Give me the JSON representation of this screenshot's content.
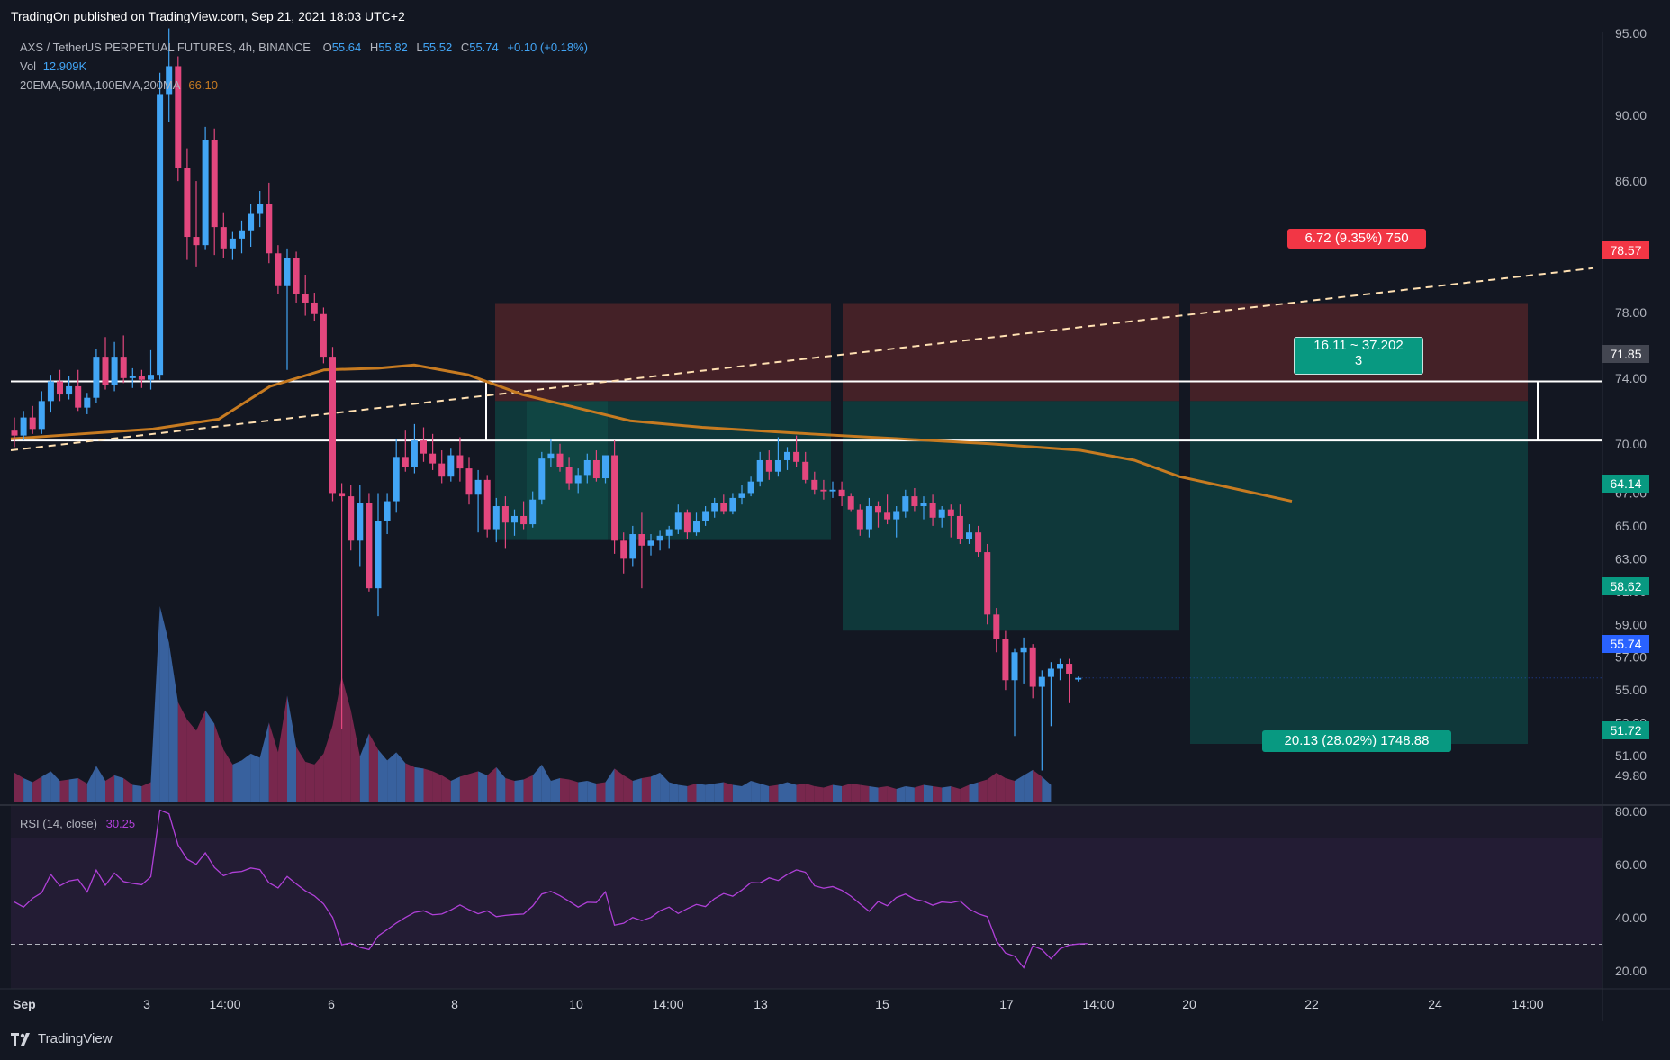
{
  "header": {
    "published": "TradingOn published on TradingView.com, Sep 21, 2021 18:03 UTC+2"
  },
  "legend": {
    "symbol": "AXS / TetherUS PERPETUAL FUTURES, 4h, BINANCE",
    "open_label": "O",
    "open": "55.64",
    "high_label": "H",
    "high": "55.82",
    "low_label": "L",
    "low": "55.52",
    "close_label": "C",
    "close": "55.74",
    "change": "+0.10 (+0.18%)",
    "vol_label": "Vol",
    "vol": "12.909K",
    "ma_label": "20EMA,50MA,100EMA,200MA",
    "ma_value": "66.10"
  },
  "rsi_legend": {
    "label": "RSI (14, close)",
    "value": "30.25"
  },
  "footer": {
    "brand": "TradingView"
  },
  "colors": {
    "bg": "#131722",
    "up": "#42a5f5",
    "down": "#e3477e",
    "ma": "#c77b21",
    "rsi": "#b040d8",
    "target_zone": "#0f3c3d",
    "stop_zone": "#4a2228",
    "tag_green": "#089981",
    "tag_red": "#f23645",
    "tag_blue": "#2962ff"
  },
  "price_axis": {
    "ticks": [
      "95.00",
      "90.00",
      "86.00",
      "82.00",
      "78.00",
      "74.00",
      "70.00",
      "67.00",
      "65.00",
      "63.00",
      "61.00",
      "59.00",
      "57.00",
      "55.00",
      "53.00",
      "51.00",
      "49.80"
    ]
  },
  "price_tags": [
    {
      "value": "78.57",
      "color": "#f23645"
    },
    {
      "value": "71.85",
      "color": "#434651"
    },
    {
      "value": "64.14",
      "color": "#089981"
    },
    {
      "value": "58.62",
      "color": "#089981"
    },
    {
      "value": "55.74",
      "color": "#2962ff"
    },
    {
      "value": "51.72",
      "color": "#089981"
    }
  ],
  "rsi_axis": {
    "ticks": [
      "80.00",
      "60.00",
      "40.00",
      "20.00"
    ]
  },
  "time_axis": {
    "ticks": [
      "Sep",
      "3",
      "14:00",
      "6",
      "8",
      "10",
      "14:00",
      "13",
      "15",
      "17",
      "14:00",
      "20",
      "22",
      "24",
      "14:00"
    ]
  },
  "position": {
    "stop_label": "6.72 (9.35%) 750",
    "range_label_1": "16.11 ~ 37.202",
    "range_label_2": "3",
    "target_label": "20.13 (28.02%) 1748.88"
  },
  "chart_data": {
    "type": "candlestick",
    "title": "AXS / TetherUS PERPETUAL FUTURES, 4h, BINANCE",
    "interval": "4h",
    "ylim": [
      48.5,
      96
    ],
    "x_range_days": [
      1,
      26
    ],
    "candles": [
      {
        "o": 70.8,
        "h": 71.6,
        "l": 69.8,
        "c": 70.5
      },
      {
        "o": 70.5,
        "h": 72.0,
        "l": 70.2,
        "c": 71.6
      },
      {
        "o": 71.6,
        "h": 72.3,
        "l": 70.6,
        "c": 70.9
      },
      {
        "o": 70.9,
        "h": 73.2,
        "l": 70.6,
        "c": 72.6
      },
      {
        "o": 72.6,
        "h": 74.2,
        "l": 71.9,
        "c": 73.8
      },
      {
        "o": 73.8,
        "h": 74.5,
        "l": 72.6,
        "c": 73.0
      },
      {
        "o": 73.0,
        "h": 74.1,
        "l": 72.7,
        "c": 73.5
      },
      {
        "o": 73.5,
        "h": 74.5,
        "l": 72.0,
        "c": 72.2
      },
      {
        "o": 72.2,
        "h": 73.1,
        "l": 71.8,
        "c": 72.8
      },
      {
        "o": 72.8,
        "h": 75.8,
        "l": 72.5,
        "c": 75.3
      },
      {
        "o": 75.3,
        "h": 76.5,
        "l": 73.3,
        "c": 73.6
      },
      {
        "o": 73.6,
        "h": 76.2,
        "l": 73.2,
        "c": 75.3
      },
      {
        "o": 75.3,
        "h": 76.6,
        "l": 73.7,
        "c": 74.0
      },
      {
        "o": 74.0,
        "h": 74.6,
        "l": 73.4,
        "c": 74.1
      },
      {
        "o": 74.1,
        "h": 74.5,
        "l": 73.4,
        "c": 73.9
      },
      {
        "o": 73.9,
        "h": 75.7,
        "l": 73.3,
        "c": 74.2
      },
      {
        "o": 74.2,
        "h": 92.6,
        "l": 73.9,
        "c": 91.3
      },
      {
        "o": 91.3,
        "h": 95.3,
        "l": 89.6,
        "c": 93.0
      },
      {
        "o": 93.0,
        "h": 93.6,
        "l": 86.0,
        "c": 86.8
      },
      {
        "o": 86.8,
        "h": 88.0,
        "l": 81.2,
        "c": 82.6
      },
      {
        "o": 82.6,
        "h": 86.0,
        "l": 80.8,
        "c": 82.1
      },
      {
        "o": 82.1,
        "h": 89.3,
        "l": 81.8,
        "c": 88.5
      },
      {
        "o": 88.5,
        "h": 89.2,
        "l": 81.5,
        "c": 83.2
      },
      {
        "o": 83.2,
        "h": 84.1,
        "l": 81.3,
        "c": 81.9
      },
      {
        "o": 81.9,
        "h": 82.9,
        "l": 81.2,
        "c": 82.5
      },
      {
        "o": 82.5,
        "h": 83.6,
        "l": 81.6,
        "c": 83.0
      },
      {
        "o": 83.0,
        "h": 84.6,
        "l": 82.0,
        "c": 84.0
      },
      {
        "o": 84.0,
        "h": 85.4,
        "l": 83.2,
        "c": 84.6
      },
      {
        "o": 84.6,
        "h": 85.9,
        "l": 81.0,
        "c": 81.6
      },
      {
        "o": 81.6,
        "h": 82.1,
        "l": 79.1,
        "c": 79.6
      },
      {
        "o": 79.6,
        "h": 81.9,
        "l": 74.5,
        "c": 81.3
      },
      {
        "o": 81.3,
        "h": 81.7,
        "l": 78.6,
        "c": 79.1
      },
      {
        "o": 79.1,
        "h": 80.3,
        "l": 77.8,
        "c": 78.6
      },
      {
        "o": 78.6,
        "h": 79.2,
        "l": 77.5,
        "c": 77.9
      },
      {
        "o": 77.9,
        "h": 78.3,
        "l": 74.9,
        "c": 75.3
      },
      {
        "o": 75.3,
        "h": 75.9,
        "l": 66.5,
        "c": 67.0
      },
      {
        "o": 67.0,
        "h": 67.6,
        "l": 52.6,
        "c": 66.8
      },
      {
        "o": 66.8,
        "h": 67.5,
        "l": 63.5,
        "c": 64.1
      },
      {
        "o": 64.1,
        "h": 67.5,
        "l": 62.5,
        "c": 66.4
      },
      {
        "o": 66.4,
        "h": 67.0,
        "l": 61.0,
        "c": 61.2
      },
      {
        "o": 61.2,
        "h": 67.0,
        "l": 59.5,
        "c": 65.3
      },
      {
        "o": 65.3,
        "h": 67.0,
        "l": 64.5,
        "c": 66.5
      },
      {
        "o": 66.5,
        "h": 70.3,
        "l": 65.8,
        "c": 69.2
      },
      {
        "o": 69.2,
        "h": 70.8,
        "l": 68.3,
        "c": 68.6
      },
      {
        "o": 68.6,
        "h": 71.2,
        "l": 68.2,
        "c": 70.2
      },
      {
        "o": 70.2,
        "h": 71.0,
        "l": 68.9,
        "c": 69.4
      },
      {
        "o": 69.4,
        "h": 70.6,
        "l": 68.4,
        "c": 68.8
      },
      {
        "o": 68.8,
        "h": 69.6,
        "l": 67.6,
        "c": 68.0
      },
      {
        "o": 68.0,
        "h": 69.7,
        "l": 67.7,
        "c": 69.3
      },
      {
        "o": 69.3,
        "h": 70.4,
        "l": 67.7,
        "c": 68.5
      },
      {
        "o": 68.5,
        "h": 69.2,
        "l": 66.3,
        "c": 66.9
      },
      {
        "o": 66.9,
        "h": 68.4,
        "l": 64.6,
        "c": 67.8
      },
      {
        "o": 67.8,
        "h": 68.1,
        "l": 64.3,
        "c": 64.8
      },
      {
        "o": 64.8,
        "h": 66.7,
        "l": 64.0,
        "c": 66.2
      },
      {
        "o": 66.2,
        "h": 66.8,
        "l": 63.6,
        "c": 65.2
      },
      {
        "o": 65.2,
        "h": 66.0,
        "l": 64.4,
        "c": 65.6
      },
      {
        "o": 65.6,
        "h": 66.5,
        "l": 64.8,
        "c": 65.1
      },
      {
        "o": 65.1,
        "h": 67.1,
        "l": 64.9,
        "c": 66.6
      },
      {
        "o": 66.6,
        "h": 69.5,
        "l": 66.3,
        "c": 69.1
      },
      {
        "o": 69.1,
        "h": 70.3,
        "l": 68.6,
        "c": 69.4
      },
      {
        "o": 69.4,
        "h": 70.0,
        "l": 68.3,
        "c": 68.6
      },
      {
        "o": 68.6,
        "h": 69.2,
        "l": 67.2,
        "c": 67.6
      },
      {
        "o": 67.6,
        "h": 68.5,
        "l": 67.0,
        "c": 68.1
      },
      {
        "o": 68.1,
        "h": 69.4,
        "l": 67.6,
        "c": 69.0
      },
      {
        "o": 69.0,
        "h": 69.6,
        "l": 67.7,
        "c": 67.9
      },
      {
        "o": 67.9,
        "h": 69.3,
        "l": 67.6,
        "c": 69.3
      },
      {
        "o": 69.3,
        "h": 70.2,
        "l": 63.3,
        "c": 64.1
      },
      {
        "o": 64.1,
        "h": 64.6,
        "l": 62.1,
        "c": 63.0
      },
      {
        "o": 63.0,
        "h": 65.0,
        "l": 62.5,
        "c": 64.5
      },
      {
        "o": 64.5,
        "h": 65.8,
        "l": 61.2,
        "c": 63.8
      },
      {
        "o": 63.8,
        "h": 64.5,
        "l": 63.2,
        "c": 64.1
      },
      {
        "o": 64.1,
        "h": 64.7,
        "l": 63.5,
        "c": 64.4
      },
      {
        "o": 64.4,
        "h": 65.0,
        "l": 63.6,
        "c": 64.8
      },
      {
        "o": 64.8,
        "h": 66.3,
        "l": 64.5,
        "c": 65.8
      },
      {
        "o": 65.8,
        "h": 66.0,
        "l": 64.2,
        "c": 64.6
      },
      {
        "o": 64.6,
        "h": 65.8,
        "l": 64.4,
        "c": 65.3
      },
      {
        "o": 65.3,
        "h": 66.2,
        "l": 65.0,
        "c": 65.9
      },
      {
        "o": 65.9,
        "h": 66.7,
        "l": 65.5,
        "c": 66.4
      },
      {
        "o": 66.4,
        "h": 66.9,
        "l": 65.7,
        "c": 65.9
      },
      {
        "o": 65.9,
        "h": 67.0,
        "l": 65.7,
        "c": 66.7
      },
      {
        "o": 66.7,
        "h": 67.5,
        "l": 66.3,
        "c": 67.0
      },
      {
        "o": 67.0,
        "h": 68.0,
        "l": 66.8,
        "c": 67.7
      },
      {
        "o": 67.7,
        "h": 69.5,
        "l": 67.4,
        "c": 69.0
      },
      {
        "o": 69.0,
        "h": 69.6,
        "l": 67.8,
        "c": 68.3
      },
      {
        "o": 68.3,
        "h": 70.4,
        "l": 68.0,
        "c": 69.0
      },
      {
        "o": 69.0,
        "h": 69.8,
        "l": 68.4,
        "c": 69.5
      },
      {
        "o": 69.5,
        "h": 70.5,
        "l": 68.6,
        "c": 68.9
      },
      {
        "o": 68.9,
        "h": 69.5,
        "l": 67.6,
        "c": 67.8
      },
      {
        "o": 67.8,
        "h": 68.3,
        "l": 66.9,
        "c": 67.2
      },
      {
        "o": 67.2,
        "h": 67.8,
        "l": 66.6,
        "c": 67.1
      },
      {
        "o": 67.1,
        "h": 67.7,
        "l": 66.7,
        "c": 67.2
      },
      {
        "o": 67.2,
        "h": 67.7,
        "l": 66.2,
        "c": 66.8
      },
      {
        "o": 66.8,
        "h": 67.0,
        "l": 65.9,
        "c": 66.0
      },
      {
        "o": 66.0,
        "h": 66.3,
        "l": 64.4,
        "c": 64.8
      },
      {
        "o": 64.8,
        "h": 66.7,
        "l": 64.3,
        "c": 66.2
      },
      {
        "o": 66.2,
        "h": 66.5,
        "l": 64.9,
        "c": 65.8
      },
      {
        "o": 65.8,
        "h": 66.9,
        "l": 65.1,
        "c": 65.4
      },
      {
        "o": 65.4,
        "h": 66.2,
        "l": 64.3,
        "c": 65.9
      },
      {
        "o": 65.9,
        "h": 67.2,
        "l": 65.5,
        "c": 66.8
      },
      {
        "o": 66.8,
        "h": 67.3,
        "l": 65.9,
        "c": 66.2
      },
      {
        "o": 66.2,
        "h": 66.8,
        "l": 65.4,
        "c": 66.4
      },
      {
        "o": 66.4,
        "h": 66.9,
        "l": 65.0,
        "c": 65.5
      },
      {
        "o": 65.5,
        "h": 66.2,
        "l": 64.9,
        "c": 66.0
      },
      {
        "o": 66.0,
        "h": 66.3,
        "l": 64.3,
        "c": 65.6
      },
      {
        "o": 65.6,
        "h": 66.3,
        "l": 63.9,
        "c": 64.2
      },
      {
        "o": 64.2,
        "h": 65.1,
        "l": 63.9,
        "c": 64.6
      },
      {
        "o": 64.6,
        "h": 65.0,
        "l": 63.1,
        "c": 63.4
      },
      {
        "o": 63.4,
        "h": 63.9,
        "l": 59.0,
        "c": 59.6
      },
      {
        "o": 59.6,
        "h": 60.0,
        "l": 57.3,
        "c": 58.1
      },
      {
        "o": 58.1,
        "h": 58.6,
        "l": 55.0,
        "c": 55.6
      },
      {
        "o": 55.6,
        "h": 57.5,
        "l": 52.2,
        "c": 57.3
      },
      {
        "o": 57.3,
        "h": 58.2,
        "l": 55.4,
        "c": 57.6
      },
      {
        "o": 57.6,
        "h": 57.8,
        "l": 54.5,
        "c": 55.2
      },
      {
        "o": 55.2,
        "h": 56.2,
        "l": 50.1,
        "c": 55.8
      },
      {
        "o": 55.8,
        "h": 56.7,
        "l": 52.8,
        "c": 56.3
      },
      {
        "o": 56.3,
        "h": 56.9,
        "l": 55.6,
        "c": 56.6
      },
      {
        "o": 56.6,
        "h": 56.9,
        "l": 54.2,
        "c": 56.0
      },
      {
        "o": 55.64,
        "h": 55.82,
        "l": 55.52,
        "c": 55.74
      }
    ],
    "volume": [
      2.2,
      1.8,
      1.5,
      1.9,
      2.3,
      1.6,
      1.7,
      1.8,
      1.4,
      2.7,
      1.6,
      2.0,
      1.8,
      1.3,
      1.2,
      1.5,
      14.5,
      11.8,
      7.4,
      6.1,
      5.3,
      6.8,
      5.8,
      3.9,
      2.8,
      3.1,
      3.6,
      3.3,
      5.9,
      3.7,
      7.9,
      4.1,
      3.0,
      2.8,
      3.6,
      5.7,
      9.3,
      6.8,
      3.4,
      5.1,
      3.9,
      3.1,
      3.7,
      2.9,
      2.6,
      2.5,
      2.3,
      2.0,
      1.6,
      1.9,
      2.1,
      2.3,
      2.0,
      2.6,
      1.8,
      1.6,
      1.7,
      2.0,
      2.8,
      1.6,
      1.8,
      1.7,
      1.5,
      1.6,
      1.4,
      1.5,
      2.5,
      2.0,
      1.6,
      1.8,
      1.9,
      2.2,
      1.5,
      1.3,
      1.2,
      1.4,
      1.3,
      1.4,
      1.5,
      1.3,
      1.2,
      1.6,
      1.4,
      1.2,
      1.3,
      1.5,
      1.3,
      1.4,
      1.2,
      1.1,
      1.3,
      1.2,
      1.4,
      1.3,
      1.2,
      1.1,
      1.2,
      1.0,
      1.2,
      1.1,
      1.3,
      1.2,
      1.1,
      1.2,
      1.0,
      1.3,
      1.5,
      1.7,
      2.2,
      1.8,
      1.6,
      2.0,
      2.4,
      1.9,
      1.3
    ],
    "ma_line": [
      [
        1,
        70.3
      ],
      [
        2,
        70.6
      ],
      [
        3,
        70.9
      ],
      [
        4,
        71.5
      ],
      [
        5,
        73.5
      ],
      [
        6,
        74.5
      ],
      [
        7,
        74.6
      ],
      [
        8,
        74.8
      ],
      [
        9,
        74.2
      ],
      [
        10,
        73.0
      ],
      [
        11,
        72.2
      ],
      [
        12,
        71.4
      ],
      [
        13,
        71.0
      ],
      [
        14,
        70.6
      ],
      [
        15,
        70.3
      ],
      [
        16,
        70.0
      ],
      [
        17,
        69.6
      ],
      [
        18,
        69.0
      ],
      [
        19,
        68.0
      ],
      [
        20,
        66.5
      ]
    ],
    "rsi": [
      45.9,
      44.0,
      47.3,
      49.4,
      56.3,
      52.0,
      53.8,
      54.4,
      49.7,
      57.9,
      52.2,
      56.8,
      53.6,
      52.9,
      52.4,
      55.4,
      80.5,
      79.1,
      67.3,
      62.0,
      60.1,
      64.4,
      58.9,
      55.8,
      57.1,
      57.4,
      58.7,
      58.1,
      53.1,
      51.2,
      55.5,
      52.7,
      50.1,
      48.2,
      45.2,
      40.1,
      29.8,
      30.5,
      28.8,
      28.0,
      33.1,
      35.5,
      38.0,
      40.1,
      42.0,
      42.6,
      41.1,
      41.4,
      42.9,
      44.8,
      43.0,
      41.5,
      42.6,
      40.4,
      40.9,
      41.2,
      41.4,
      44.4,
      48.9,
      49.9,
      48.3,
      46.2,
      44.0,
      45.8,
      45.7,
      49.7,
      37.2,
      37.9,
      40.1,
      38.9,
      40.1,
      42.6,
      44.0,
      41.6,
      43.4,
      45.0,
      44.2,
      47.2,
      49.1,
      48.1,
      50.4,
      53.2,
      53.1,
      55.0,
      54.0,
      56.3,
      58.0,
      57.1,
      52.0,
      51.1,
      51.7,
      50.3,
      48.1,
      45.2,
      42.4,
      46.1,
      44.5,
      47.6,
      48.9,
      47.0,
      46.2,
      44.7,
      45.9,
      45.6,
      46.3,
      43.3,
      41.5,
      40.4,
      31.3,
      26.7,
      25.5,
      21.2,
      29.4,
      28.0,
      24.5,
      28.3,
      29.7,
      30.1,
      30.25
    ],
    "rsi_levels": [
      70,
      30
    ],
    "rsi_ylim": [
      15,
      82
    ],
    "levels": {
      "stop": 78.57,
      "entry_top": 73.8,
      "entry_bottom": 70.2,
      "avg_entry": 71.85,
      "target_1": 64.14,
      "target_2": 58.62,
      "target_3": 51.72,
      "last": 55.74
    },
    "trendline": [
      [
        1,
        69.6
      ],
      [
        26,
        80.7
      ]
    ]
  }
}
